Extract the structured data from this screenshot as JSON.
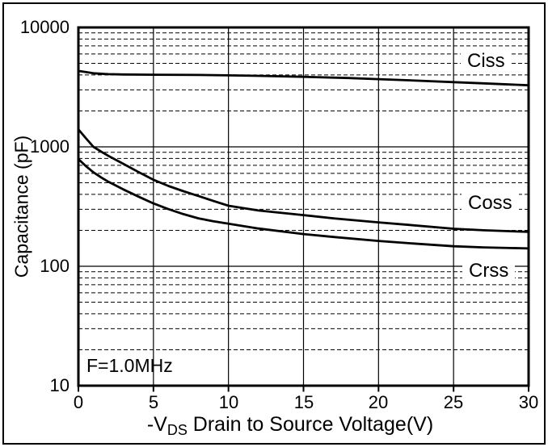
{
  "chart_data": {
    "type": "line",
    "title": "",
    "ylabel": "Capacitance (pF)",
    "xlabel": {
      "prefix": "-V",
      "sub": "DS",
      "rest": " Drain to Source Voltage(V)"
    },
    "annotation": "F=1.0MHz",
    "grid": {
      "horizontal_minor": "dashed",
      "horizontal_major": "solid",
      "vertical": "solid",
      "legend_position": "inline-labels-right"
    },
    "x_axis": {
      "scale": "linear",
      "min": 0,
      "max": 30,
      "tick_step": 5,
      "tick_labels": [
        "0",
        "5",
        "10",
        "15",
        "20",
        "25",
        "30"
      ]
    },
    "y_axis": {
      "scale": "log",
      "min": 10,
      "max": 10000,
      "tick_labels": [
        "10000",
        "1000",
        "100",
        "10"
      ]
    },
    "series": [
      {
        "name": "Ciss",
        "points": [
          [
            0,
            4320
          ],
          [
            1,
            4130
          ],
          [
            2,
            4060
          ],
          [
            3,
            4040
          ],
          [
            5,
            4020
          ],
          [
            8,
            4000
          ],
          [
            10,
            3970
          ],
          [
            12,
            3930
          ],
          [
            15,
            3860
          ],
          [
            18,
            3770
          ],
          [
            20,
            3690
          ],
          [
            22,
            3610
          ],
          [
            25,
            3480
          ],
          [
            27,
            3400
          ],
          [
            30,
            3280
          ]
        ]
      },
      {
        "name": "Coss",
        "points": [
          [
            0,
            1400
          ],
          [
            0.5,
            1180
          ],
          [
            1,
            1000
          ],
          [
            1.5,
            915
          ],
          [
            2,
            840
          ],
          [
            3,
            720
          ],
          [
            4,
            615
          ],
          [
            5,
            530
          ],
          [
            6,
            470
          ],
          [
            7,
            425
          ],
          [
            8,
            388
          ],
          [
            9,
            352
          ],
          [
            10,
            321
          ],
          [
            12,
            293
          ],
          [
            15,
            268
          ],
          [
            17,
            252
          ],
          [
            20,
            233
          ],
          [
            22,
            222
          ],
          [
            25,
            206
          ],
          [
            27,
            200
          ],
          [
            30,
            194
          ]
        ]
      },
      {
        "name": "Crss",
        "points": [
          [
            0,
            790
          ],
          [
            0.5,
            690
          ],
          [
            1,
            612
          ],
          [
            1.5,
            556
          ],
          [
            2,
            510
          ],
          [
            3,
            440
          ],
          [
            4,
            383
          ],
          [
            5,
            336
          ],
          [
            6,
            301
          ],
          [
            7,
            273
          ],
          [
            8,
            252
          ],
          [
            9,
            238
          ],
          [
            10,
            227
          ],
          [
            12,
            207
          ],
          [
            15,
            186
          ],
          [
            17,
            176
          ],
          [
            20,
            163
          ],
          [
            22,
            156
          ],
          [
            25,
            147
          ],
          [
            27,
            144
          ],
          [
            30,
            141
          ]
        ]
      }
    ],
    "line_color": "#000000",
    "background_color": "#ffffff"
  }
}
